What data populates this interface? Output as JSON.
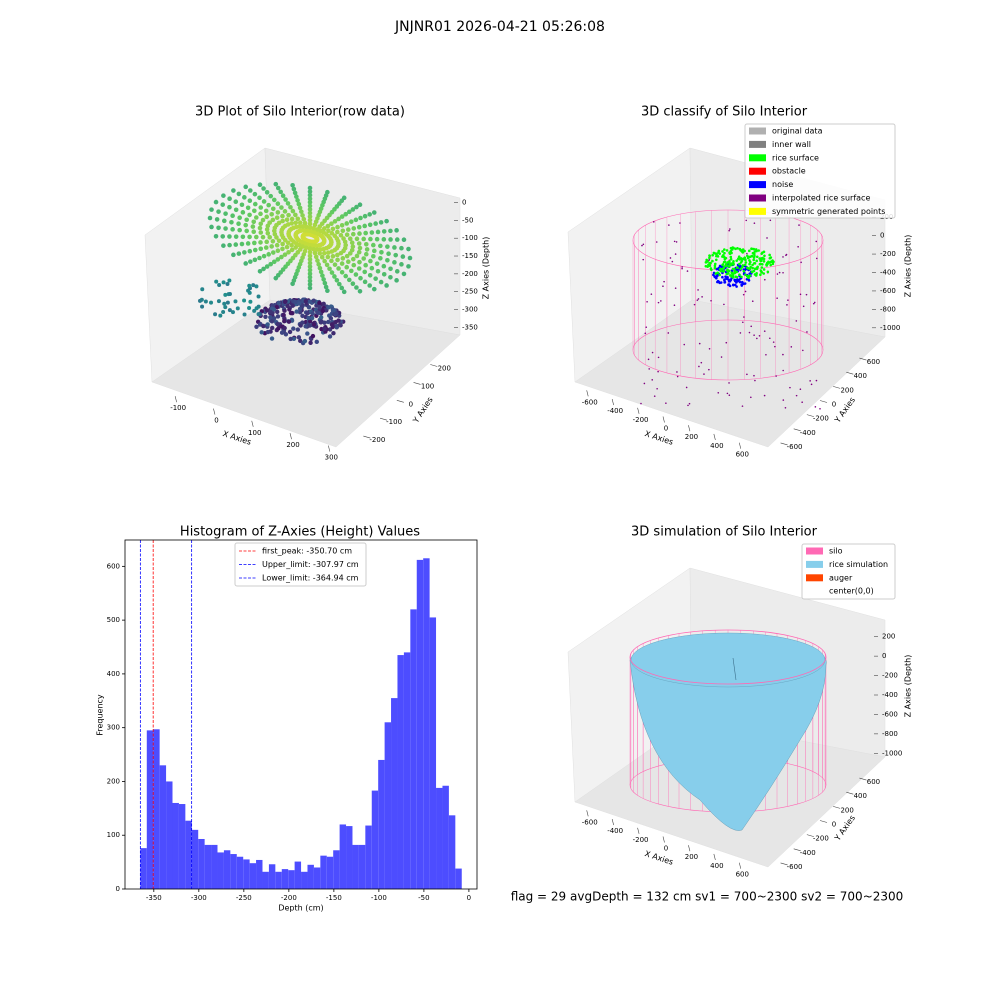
{
  "figure_title": "JNJNR01 2026-04-21 05:26:08",
  "footer": "flag = 29  avgDepth = 132 cm  sv1 = 700~2300  sv2 = 700~2300",
  "chart_data": [
    {
      "type": "scatter3d",
      "title": "3D Plot of Silo Interior(row data)",
      "xlabel": "X Axies",
      "ylabel": "Y Axies",
      "zlabel": "Z Axies (Depth)",
      "xlim": [
        -150,
        320
      ],
      "xticks": [
        -100,
        0,
        100,
        200,
        300
      ],
      "ylim": [
        -250,
        270
      ],
      "yticks": [
        -200,
        -100,
        0,
        100,
        200
      ],
      "zlim": [
        -380,
        10
      ],
      "zticks": [
        -350,
        -300,
        -250,
        -200,
        -150,
        -100,
        -50,
        0
      ]
    },
    {
      "type": "scatter3d",
      "title": "3D classify of Silo Interior",
      "xlabel": "X Axies",
      "ylabel": "Y Axies",
      "zlabel": "Z Axies (Depth)",
      "xlim": [
        -700,
        700
      ],
      "xticks": [
        -600,
        -400,
        -200,
        0,
        200,
        400,
        600
      ],
      "ylim": [
        -700,
        700
      ],
      "yticks": [
        -600,
        -400,
        -200,
        0,
        200,
        400,
        600
      ],
      "zlim": [
        -1100,
        300
      ],
      "zticks": [
        -1000,
        -800,
        -600,
        -400,
        -200,
        0,
        200
      ],
      "legend": [
        {
          "name": "original data",
          "color": "#b0b0b0"
        },
        {
          "name": "inner wall",
          "color": "#808080"
        },
        {
          "name": "rice surface",
          "color": "#00ff00"
        },
        {
          "name": "obstacle",
          "color": "#ff0000"
        },
        {
          "name": "noise",
          "color": "#0000ff"
        },
        {
          "name": "interpolated rice surface",
          "color": "#800080"
        },
        {
          "name": "symmetric generated points",
          "color": "#ffff00"
        }
      ]
    },
    {
      "type": "histogram",
      "title": "Histogram of Z-Axies (Height) Values",
      "xlabel": "Depth (cm)",
      "ylabel": "Frequency",
      "color": "#4d4dff",
      "bins": [
        -364.94,
        -357.8,
        -350.66,
        -343.52,
        -336.38,
        -329.24,
        -322.1,
        -314.96,
        -307.82,
        -300.68,
        -293.54,
        -286.4,
        -279.26,
        -272.12,
        -264.98,
        -257.84,
        -250.7,
        -243.56,
        -236.42,
        -229.28,
        -222.14,
        -215.0,
        -207.86,
        -200.72,
        -193.58,
        -186.44,
        -179.3,
        -172.16,
        -165.02,
        -157.88,
        -150.74,
        -143.6,
        -136.46,
        -129.32,
        -122.18,
        -115.04,
        -107.9,
        -100.76,
        -93.62,
        -86.48,
        -79.34,
        -72.2,
        -65.06,
        -57.92,
        -50.78,
        -43.64,
        -36.5,
        -29.36,
        -22.22,
        -15.08,
        -7.94
      ],
      "values": [
        76,
        295,
        297,
        230,
        200,
        160,
        158,
        127,
        110,
        93,
        82,
        82,
        68,
        72,
        65,
        60,
        55,
        48,
        54,
        32,
        46,
        32,
        37,
        35,
        51,
        32,
        45,
        40,
        62,
        60,
        72,
        120,
        117,
        82,
        82,
        118,
        183,
        240,
        310,
        355,
        435,
        440,
        520,
        612,
        615,
        505,
        188,
        192,
        137,
        38
      ],
      "xlim": [
        -382,
        9
      ],
      "xticks": [
        -350,
        -300,
        -250,
        -200,
        -150,
        -100,
        -50,
        0
      ],
      "ylim": [
        0,
        649
      ],
      "yticks": [
        0,
        100,
        200,
        300,
        400,
        500,
        600
      ],
      "vlines": [
        {
          "label": "first_peak: -350.70 cm",
          "value": -350.7,
          "color": "#ff0000"
        },
        {
          "label": "Upper_limit: -307.97 cm",
          "value": -307.97,
          "color": "#0000ff"
        },
        {
          "label": "Lower_limit: -364.94 cm",
          "value": -364.94,
          "color": "#0000ff"
        }
      ]
    },
    {
      "type": "surface3d",
      "title": "3D simulation of Silo Interior",
      "xlabel": "X Axies",
      "ylabel": "Y Axies",
      "zlabel": "Z Axies (Depth)",
      "xlim": [
        -700,
        700
      ],
      "xticks": [
        -600,
        -400,
        -200,
        0,
        200,
        400,
        600
      ],
      "ylim": [
        -700,
        700
      ],
      "yticks": [
        -600,
        -400,
        -200,
        0,
        200,
        400,
        600
      ],
      "zlim": [
        -1100,
        300
      ],
      "zticks": [
        -1000,
        -800,
        -600,
        -400,
        -200,
        0,
        200
      ],
      "legend": [
        {
          "name": "silo",
          "color": "#ff69b4"
        },
        {
          "name": "rice simulation",
          "color": "#87ceeb"
        },
        {
          "name": "auger",
          "color": "#ff4500"
        },
        {
          "name": "center(0,0)",
          "color": "#ffffff"
        }
      ]
    }
  ]
}
